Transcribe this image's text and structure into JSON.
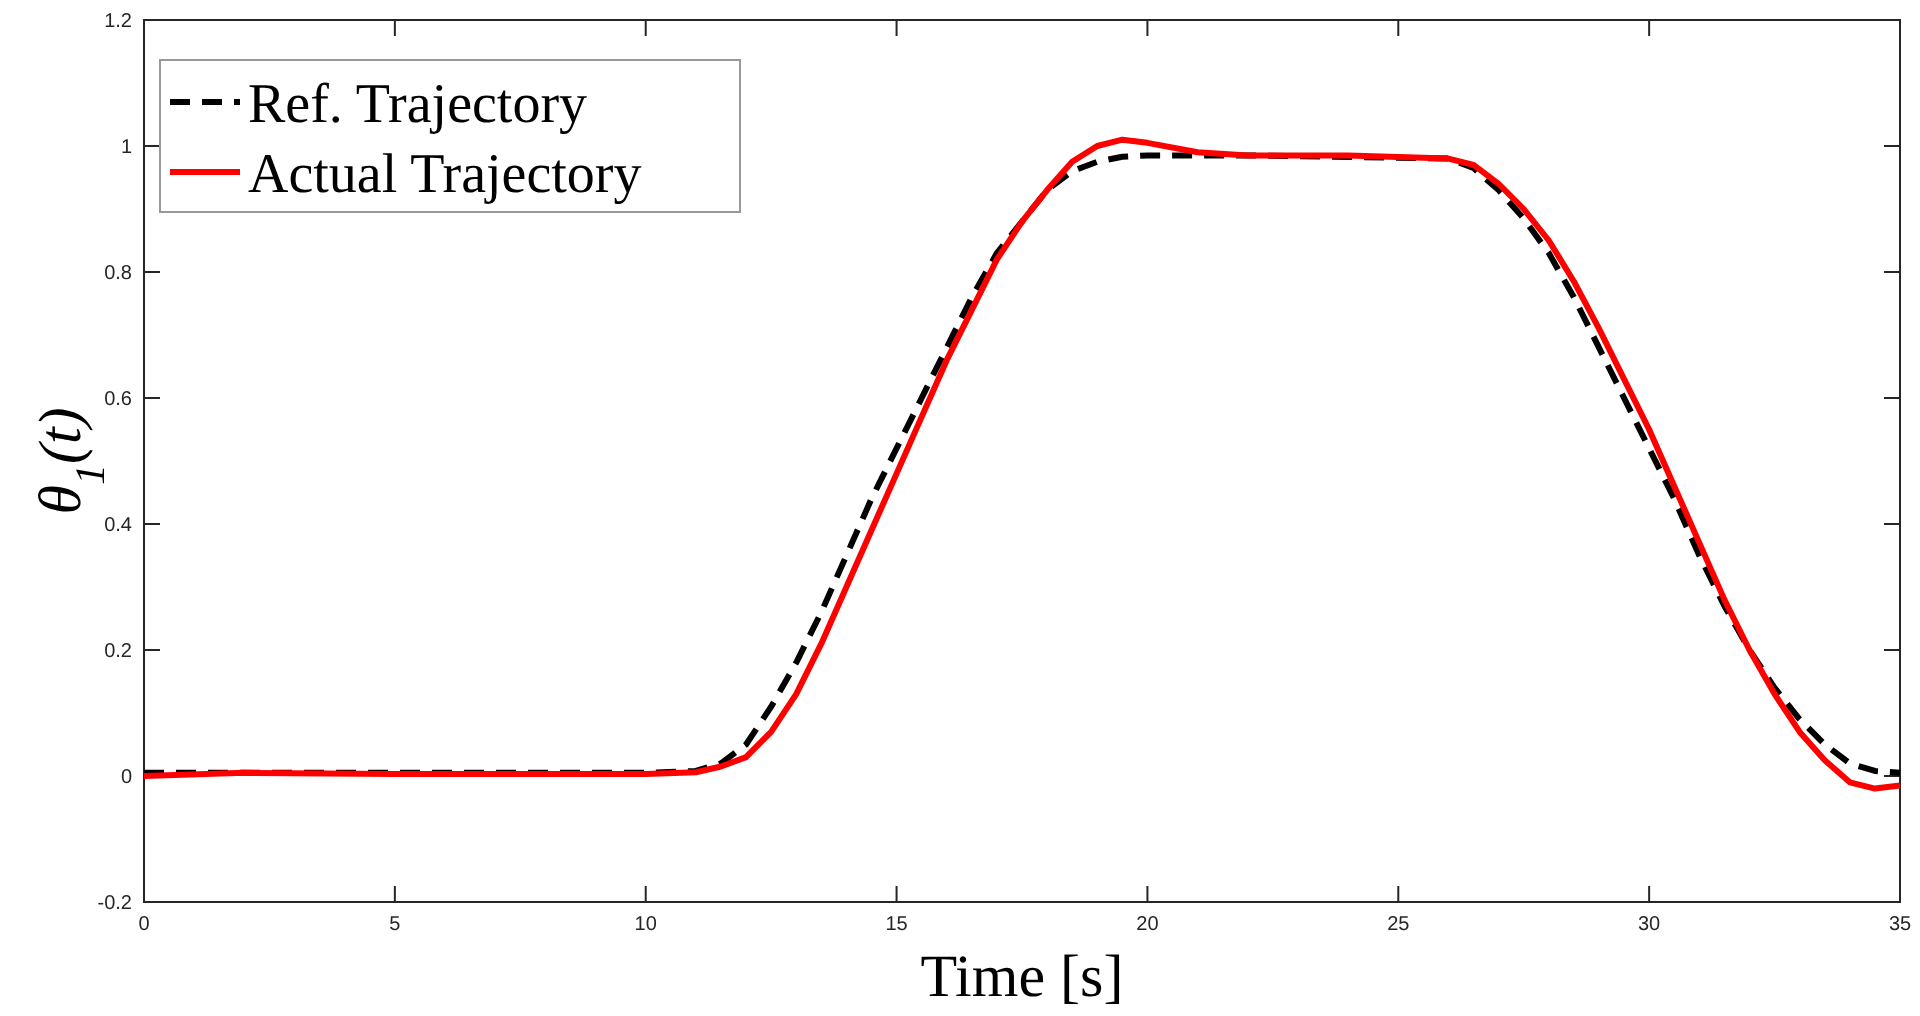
{
  "chart_data": {
    "type": "line",
    "xlabel": "Time [s]",
    "ylabel": "θ$_{1}$(t)",
    "xlim": [
      0,
      35
    ],
    "ylim": [
      -0.2,
      1.2
    ],
    "xticks": [
      0,
      5,
      10,
      15,
      20,
      25,
      30,
      35
    ],
    "yticks": [
      -0.2,
      0,
      0.2,
      0.4,
      0.6,
      0.8,
      1,
      1.2
    ],
    "grid": false,
    "legend": "top left",
    "marker": "none",
    "series": [
      {
        "name": "Ref. Trajectory",
        "color": "#000000",
        "line_style": "dashed",
        "x": [
          0,
          5,
          8,
          10,
          11,
          11.5,
          12,
          12.5,
          13,
          13.5,
          14,
          14.5,
          15,
          15.5,
          16,
          16.5,
          17,
          17.5,
          18,
          18.5,
          19,
          19.5,
          20,
          22,
          26,
          26.5,
          27,
          27.5,
          28,
          28.5,
          29,
          29.5,
          30,
          30.5,
          31,
          31.5,
          32,
          32.5,
          33,
          33.5,
          34,
          34.5,
          35
        ],
        "values": [
          0.005,
          0.005,
          0.005,
          0.005,
          0.008,
          0.02,
          0.05,
          0.11,
          0.18,
          0.26,
          0.35,
          0.44,
          0.52,
          0.6,
          0.68,
          0.76,
          0.83,
          0.88,
          0.93,
          0.96,
          0.975,
          0.983,
          0.985,
          0.985,
          0.98,
          0.965,
          0.93,
          0.885,
          0.83,
          0.76,
          0.68,
          0.6,
          0.52,
          0.44,
          0.35,
          0.27,
          0.2,
          0.14,
          0.09,
          0.05,
          0.02,
          0.008,
          0.005
        ]
      },
      {
        "name": "Actual Trajectory",
        "color": "#ff0000",
        "line_style": "solid",
        "x": [
          0,
          2,
          5,
          8,
          10,
          11,
          11.5,
          12,
          12.5,
          13,
          13.5,
          14,
          14.5,
          15,
          15.5,
          16,
          16.5,
          17,
          17.5,
          18,
          18.5,
          19,
          19.5,
          20,
          21,
          22,
          24,
          26,
          26.5,
          27,
          27.5,
          28,
          28.5,
          29,
          29.5,
          30,
          30.5,
          31,
          31.5,
          32,
          32.5,
          33,
          33.5,
          34,
          34.5,
          35
        ],
        "values": [
          0,
          0.005,
          0.003,
          0.003,
          0.003,
          0.006,
          0.015,
          0.03,
          0.07,
          0.13,
          0.21,
          0.3,
          0.39,
          0.48,
          0.57,
          0.66,
          0.74,
          0.82,
          0.88,
          0.93,
          0.975,
          1.0,
          1.01,
          1.005,
          0.99,
          0.985,
          0.985,
          0.98,
          0.97,
          0.94,
          0.9,
          0.85,
          0.785,
          0.71,
          0.63,
          0.55,
          0.46,
          0.37,
          0.28,
          0.2,
          0.13,
          0.07,
          0.025,
          -0.01,
          -0.02,
          -0.015
        ]
      }
    ]
  }
}
